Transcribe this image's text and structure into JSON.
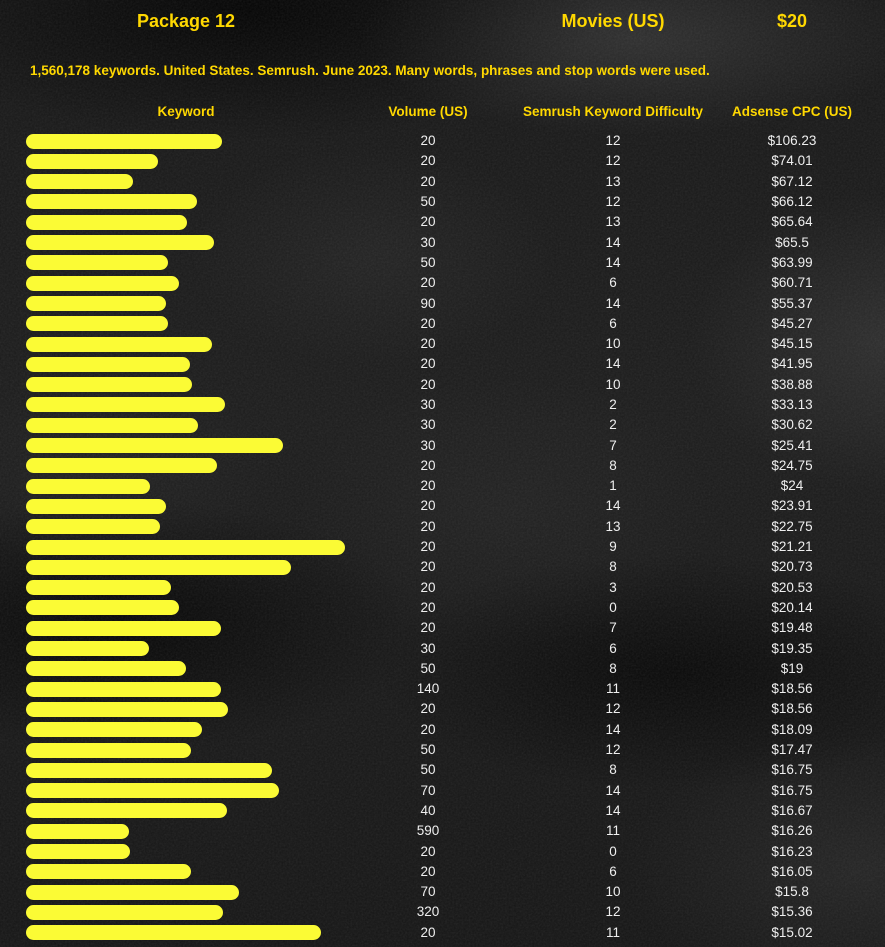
{
  "header": {
    "package": "Package 12",
    "category": "Movies (US)",
    "price": "$20"
  },
  "subtitle": "1,560,178 keywords. United States. Semrush. June 2023. Many words, phrases and stop words were used.",
  "columns": [
    "Keyword",
    "Volume (US)",
    "Semrush Keyword Difficulty",
    "Adsense CPC (US)"
  ],
  "colors": {
    "text_yellow": "#ffd800",
    "bar_yellow": "#fbfb35",
    "value_text": "#efefef",
    "background": "#181818"
  },
  "keyword_redaction_bar_widths": [
    196,
    132,
    107,
    171,
    161,
    188,
    142,
    153,
    140,
    142,
    186,
    164,
    166,
    199,
    172,
    257,
    191,
    124,
    140,
    134,
    319,
    265,
    145,
    153,
    195,
    123,
    160,
    195,
    202,
    176,
    165,
    246,
    253,
    201,
    103,
    104,
    165,
    213,
    197,
    295
  ],
  "chart_data": {
    "type": "table",
    "title": "Package 12 — Movies (US) — $20",
    "subtitle": "1,560,178 keywords. United States. Semrush. June 2023. Many words, phrases and stop words were used.",
    "columns": [
      "Keyword",
      "Volume (US)",
      "Semrush Keyword Difficulty",
      "Adsense CPC (US)"
    ],
    "keyword_column_redacted": true,
    "volume_us": [
      20,
      20,
      20,
      50,
      20,
      30,
      50,
      20,
      90,
      20,
      20,
      20,
      20,
      30,
      30,
      30,
      20,
      20,
      20,
      20,
      20,
      20,
      20,
      20,
      20,
      30,
      50,
      140,
      20,
      20,
      50,
      50,
      70,
      40,
      590,
      20,
      20,
      70,
      320,
      20
    ],
    "semrush_keyword_difficulty": [
      12,
      12,
      13,
      12,
      13,
      14,
      14,
      6,
      14,
      6,
      10,
      14,
      10,
      2,
      2,
      7,
      8,
      1,
      14,
      13,
      9,
      8,
      3,
      0,
      7,
      6,
      8,
      11,
      12,
      14,
      12,
      8,
      14,
      14,
      11,
      0,
      6,
      10,
      12,
      11
    ],
    "adsense_cpc_us": [
      "$106.23",
      "$74.01",
      "$67.12",
      "$66.12",
      "$65.64",
      "$65.5",
      "$63.99",
      "$60.71",
      "$55.37",
      "$45.27",
      "$45.15",
      "$41.95",
      "$38.88",
      "$33.13",
      "$30.62",
      "$25.41",
      "$24.75",
      "$24",
      "$23.91",
      "$22.75",
      "$21.21",
      "$20.73",
      "$20.53",
      "$20.14",
      "$19.48",
      "$19.35",
      "$19",
      "$18.56",
      "$18.56",
      "$18.09",
      "$17.47",
      "$16.75",
      "$16.75",
      "$16.67",
      "$16.26",
      "$16.23",
      "$16.05",
      "$15.8",
      "$15.36",
      "$15.02"
    ]
  }
}
